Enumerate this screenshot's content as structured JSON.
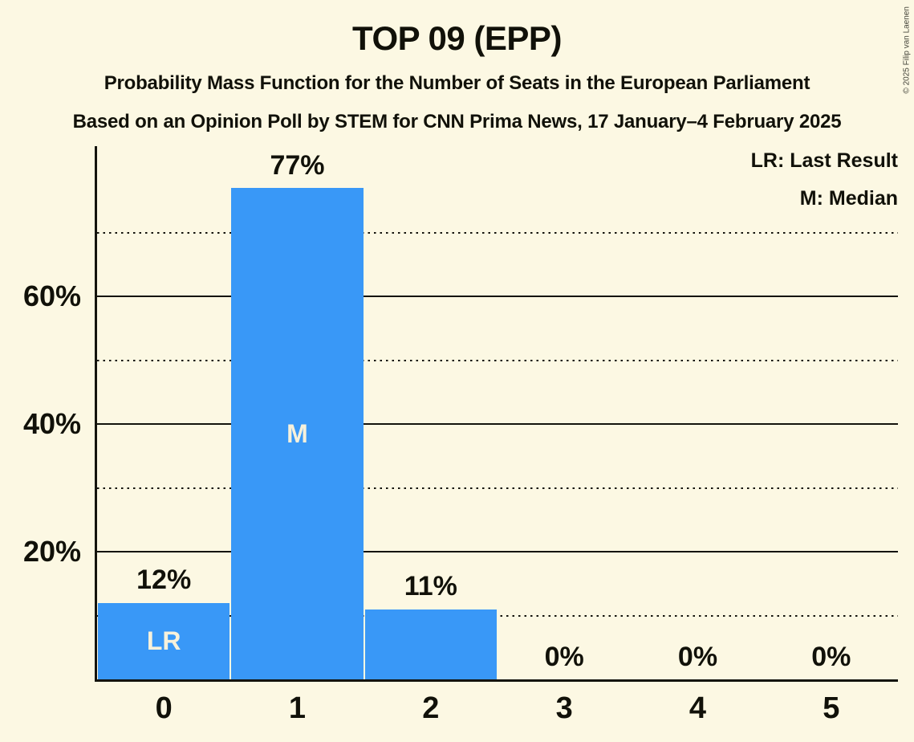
{
  "header": {
    "title": "TOP 09 (EPP)",
    "subtitle1": "Probability Mass Function for the Number of Seats in the European Parliament",
    "subtitle2": "Based on an Opinion Poll by STEM for CNN Prima News, 17 January–4 February 2025"
  },
  "legend": {
    "lr": "LR: Last Result",
    "m": "M: Median"
  },
  "copyright": "© 2025 Filip van Laenen",
  "colors": {
    "background": "#FCF8E3",
    "bar": "#3998F7",
    "text": "#111109",
    "bar_inner_label": "#F7F1DB",
    "gridline": "#14140D"
  },
  "chart_data": {
    "type": "bar",
    "title": "TOP 09 (EPP)",
    "categories": [
      "0",
      "1",
      "2",
      "3",
      "4",
      "5"
    ],
    "values": [
      12,
      77,
      11,
      0,
      0,
      0
    ],
    "value_labels": [
      "12%",
      "77%",
      "11%",
      "0%",
      "0%",
      "0%"
    ],
    "bar_annotations": [
      "LR",
      "M",
      "",
      "",
      "",
      ""
    ],
    "xlabel": "",
    "ylabel": "",
    "ylim": [
      0,
      83.6
    ],
    "y_ticks": [
      {
        "value": 20,
        "label": "20%"
      },
      {
        "value": 40,
        "label": "40%"
      },
      {
        "value": 60,
        "label": "60%"
      }
    ],
    "grid_solid": [
      20,
      40,
      60
    ],
    "grid_dotted": [
      10,
      30,
      50,
      70
    ],
    "legend_entries": [
      "LR: Last Result",
      "M: Median"
    ],
    "legend_position": "top-right",
    "annotations_meaning": {
      "LR": "Last Result",
      "M": "Median"
    }
  }
}
